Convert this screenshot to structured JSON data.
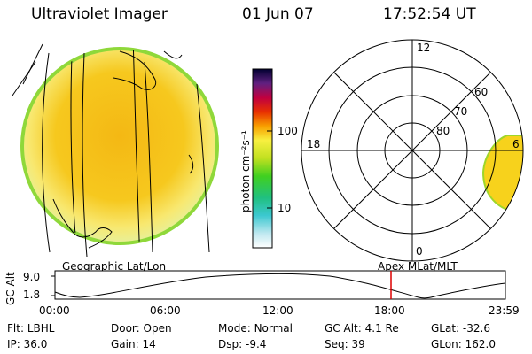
{
  "header": {
    "instrument": "Ultraviolet Imager",
    "date": "01 Jun 07",
    "time": "17:52:54 UT"
  },
  "colorbar": {
    "unit_label": "photon cm⁻²s⁻¹",
    "ticks": [
      "100",
      "10"
    ],
    "scale": "log"
  },
  "polar": {
    "mlt_labels": [
      "12",
      "18",
      "6",
      "0"
    ],
    "lat_labels": [
      "60",
      "70",
      "80"
    ]
  },
  "panels": {
    "geo_label": "Geographic Lat/Lon",
    "apex_label": "Apex MLat/MLT"
  },
  "altplot": {
    "ylabel": "GC Alt",
    "yticks": [
      "9.0",
      "1.8"
    ],
    "xticks": [
      "00:00",
      "06:00",
      "12:00",
      "18:00",
      "23:59"
    ],
    "marker_time": "17:52:54",
    "marker_color": "#dd0000"
  },
  "footer": {
    "row1": [
      {
        "label": "Flt:",
        "value": "LBHL"
      },
      {
        "label": "Door:",
        "value": "Open"
      },
      {
        "label": "Mode:",
        "value": "Normal"
      },
      {
        "label": "GC Alt:",
        "value": "4.1 Re"
      },
      {
        "label": "GLat:",
        "value": "-32.6"
      }
    ],
    "row2": [
      {
        "label": "IP:",
        "value": "36.0"
      },
      {
        "label": "Gain:",
        "value": "14"
      },
      {
        "label": "Dsp:",
        "value": "-9.4"
      },
      {
        "label": "Seq:",
        "value": "39"
      },
      {
        "label": "GLon:",
        "value": "162.0"
      }
    ]
  },
  "colors": {
    "earth_fill": "#f5c518",
    "earth_edge": "#9ed62a",
    "polar_patch": "#f7d21c"
  }
}
